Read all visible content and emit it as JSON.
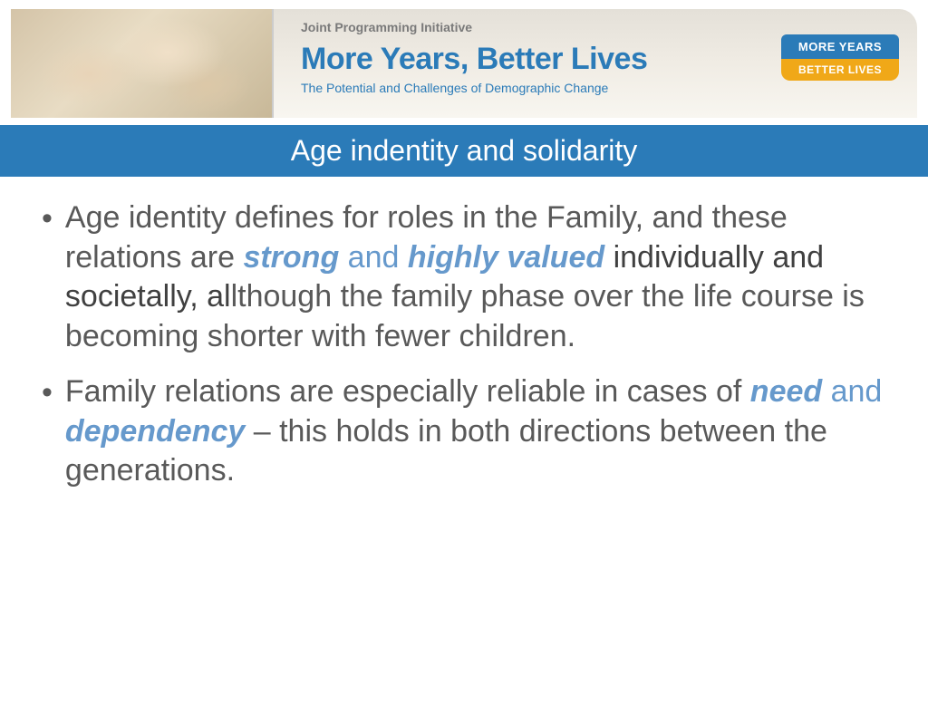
{
  "banner": {
    "subtitle": "Joint Programming Initiative",
    "title": "More Years, Better Lives",
    "tagline": "The Potential and Challenges of Demographic Change",
    "logo_top": "MORE YEARS",
    "logo_bottom": "BETTER LIVES"
  },
  "slide": {
    "title": "Age indentity and solidarity"
  },
  "bullets": {
    "b1_part1": "Age identity defines for roles in the Family, and these relations are ",
    "b1_em1": "strong",
    "b1_conn1": " and ",
    "b1_em2": "highly valued",
    "b1_part2a": " individually and societally, al",
    "b1_part2b": "lthough the family phase over the life course is becoming shorter with fewer children.",
    "b2_part1": "Family relations are especially reliable in cases of ",
    "b2_em1": "need",
    "b2_conn1": " and ",
    "b2_em2": "dependency",
    "b2_part2": " – this holds in both directions between the generations."
  },
  "colors": {
    "brand_blue": "#2b7bb8",
    "accent_blue": "#6699cc",
    "logo_orange": "#f0a818",
    "body_text": "#595959",
    "dark_text": "#404040",
    "background": "#ffffff"
  },
  "typography": {
    "title_fontsize": 32,
    "body_fontsize": 34,
    "banner_title_fontsize": 34
  }
}
